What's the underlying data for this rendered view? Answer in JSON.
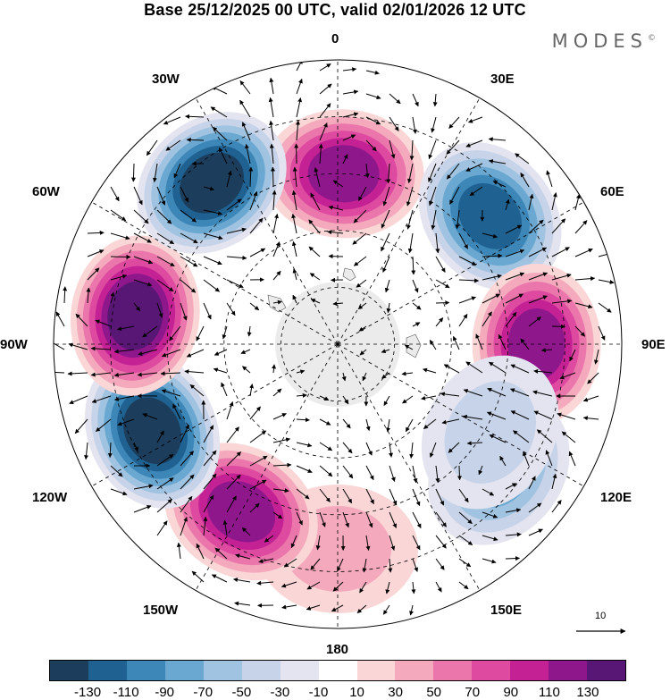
{
  "title": "Base 25/12/2025 00 UTC, valid 02/01/2026 12 UTC",
  "brand": "MODES",
  "brand_mark": "©",
  "longitude_labels": [
    "0",
    "30E",
    "60E",
    "90E",
    "120E",
    "150E",
    "180",
    "150W",
    "120W",
    "90W",
    "60W",
    "30W"
  ],
  "reference_vector": "10",
  "colorbar": {
    "colors": [
      "#1c3d5c",
      "#1f6291",
      "#3d87b8",
      "#6aa8d1",
      "#9fc3e0",
      "#c6d3e8",
      "#e4e4f0",
      "#ffffff",
      "#fad6d6",
      "#f4a9bd",
      "#ea76ab",
      "#dd4aa0",
      "#c42195",
      "#8f178c",
      "#581774"
    ],
    "ticks": [
      "-130",
      "-110",
      "-90",
      "-70",
      "-50",
      "-30",
      "-10",
      "10",
      "30",
      "50",
      "70",
      "90",
      "110",
      "130"
    ]
  },
  "map_data": {
    "anomalies": [
      {
        "name": "pos-0",
        "lon": 2,
        "colat": 0.6,
        "value": 115
      },
      {
        "name": "neg-50E",
        "lon": 50,
        "colat": 0.7,
        "value": -125
      },
      {
        "name": "pos-90E",
        "lon": 90,
        "colat": 0.7,
        "value": 115
      },
      {
        "name": "neg-120E",
        "lon": 128,
        "colat": 0.72,
        "value": -70
      },
      {
        "name": "neg-122E",
        "lon": 120,
        "colat": 0.62,
        "value": -45
      },
      {
        "name": "pos-180",
        "lon": 180,
        "colat": 0.72,
        "value": 35
      },
      {
        "name": "pos-150W",
        "lon": -150,
        "colat": 0.68,
        "value": 110
      },
      {
        "name": "neg-120W",
        "lon": -115,
        "colat": 0.72,
        "value": -140
      },
      {
        "name": "pos-90W",
        "lon": -82,
        "colat": 0.72,
        "value": 130
      },
      {
        "name": "neg-45W",
        "lon": -38,
        "colat": 0.72,
        "value": -140
      }
    ]
  }
}
